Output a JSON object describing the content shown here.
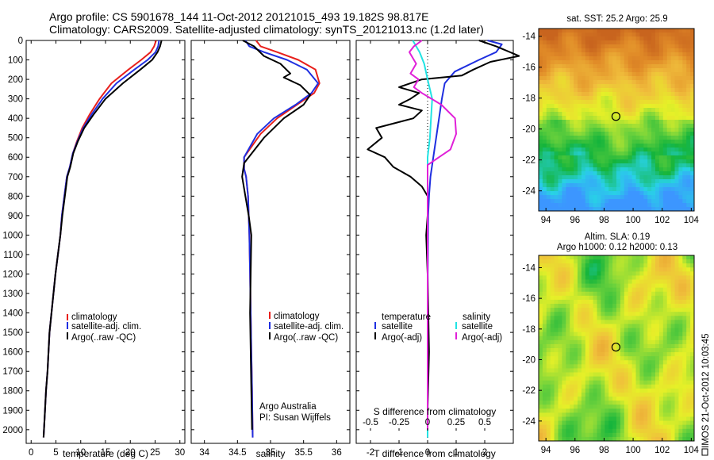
{
  "title": {
    "line1": "Argo profile: CS 5901678_144 11-Oct-2012 20121015_493 19.182S 98.817E",
    "line2": "Climatology: CARS2009. Satellite-adjusted climatology: synTS_20121013.nc (1.2d later)"
  },
  "colors": {
    "climatology": "#e8201c",
    "satellite": "#1f2fe0",
    "argo": "#000000",
    "salinity_satellite": "#22e3e3",
    "salinity_argo": "#e020d8"
  },
  "chart_data": [
    {
      "id": "temperature",
      "type": "line",
      "xlabel": "temperature (deg C)",
      "ylabel": "",
      "xlim": [
        -1,
        31
      ],
      "ylim": [
        2070,
        0
      ],
      "xticks": [
        0,
        5,
        10,
        15,
        20,
        25,
        30
      ],
      "yticks": [
        0,
        100,
        200,
        300,
        400,
        500,
        600,
        700,
        800,
        900,
        1000,
        1100,
        1200,
        1300,
        1400,
        1500,
        1600,
        1700,
        1800,
        1900,
        2000
      ],
      "legend": [
        "climatology",
        "satellite-adj. clim.",
        "Argo(..raw -QC)"
      ],
      "series": [
        {
          "name": "climatology",
          "x": [
            25.2,
            24.8,
            24.1,
            22.2,
            19.6,
            16.2,
            13.8,
            11.8,
            10.3,
            9.2,
            8.4,
            7.8,
            7.2,
            6.7,
            6.2,
            5.9,
            5.4,
            4.9,
            4.5,
            4.1,
            3.7,
            3.3,
            3.0,
            2.7,
            2.5
          ],
          "y": [
            0,
            30,
            60,
            100,
            150,
            220,
            300,
            380,
            450,
            520,
            580,
            650,
            700,
            800,
            900,
            1000,
            1100,
            1200,
            1300,
            1400,
            1500,
            1700,
            1800,
            1950,
            2040
          ]
        },
        {
          "name": "satellite-adj. clim.",
          "x": [
            25.8,
            25.6,
            25.1,
            23.5,
            20.8,
            17.2,
            14.4,
            12.2,
            10.5,
            9.3,
            8.4,
            7.8,
            7.2,
            6.7,
            6.2,
            5.9,
            5.4,
            4.9,
            4.5,
            4.1,
            3.7,
            3.3,
            3.0,
            2.7,
            2.5
          ],
          "y": [
            0,
            30,
            60,
            100,
            150,
            220,
            300,
            380,
            450,
            520,
            580,
            650,
            700,
            800,
            900,
            1000,
            1100,
            1200,
            1300,
            1400,
            1500,
            1700,
            1800,
            1950,
            2040
          ]
        },
        {
          "name": "Argo(..raw -QC)",
          "x": [
            26.3,
            26.0,
            25.5,
            24.4,
            22.0,
            18.5,
            15.0,
            12.6,
            10.7,
            9.4,
            8.5,
            7.9,
            7.3,
            6.8,
            6.3,
            5.9,
            5.4,
            4.9,
            4.5,
            4.1,
            3.7,
            3.3,
            3.0,
            2.7,
            2.5
          ],
          "y": [
            0,
            30,
            60,
            100,
            150,
            220,
            300,
            380,
            450,
            520,
            580,
            650,
            700,
            800,
            900,
            1000,
            1100,
            1200,
            1300,
            1400,
            1500,
            1700,
            1800,
            1950,
            2040
          ]
        }
      ]
    },
    {
      "id": "salinity",
      "type": "line",
      "xlabel": "salinity",
      "xlim": [
        33.8,
        36.2
      ],
      "ylim": [
        2070,
        0
      ],
      "xticks": [
        34,
        34.5,
        35,
        35.5,
        36
      ],
      "yticks": [
        0,
        100,
        200,
        300,
        400,
        500,
        600,
        700,
        800,
        900,
        1000,
        1100,
        1200,
        1300,
        1400,
        1500,
        1600,
        1700,
        1800,
        1900,
        2000
      ],
      "legend": [
        "climatology",
        "satellite-adj. clim.",
        "Argo(..raw -QC)"
      ],
      "annotations": [
        "Argo Australia",
        "PI: Susan Wijffels"
      ],
      "series": [
        {
          "name": "climatology",
          "x": [
            34.78,
            34.85,
            35.1,
            35.42,
            35.68,
            35.74,
            35.66,
            35.4,
            35.1,
            34.85,
            34.6,
            34.6,
            34.63,
            34.66,
            34.67,
            34.68,
            34.69,
            34.7,
            34.71,
            34.72,
            34.73
          ],
          "y": [
            0,
            30,
            60,
            100,
            150,
            220,
            270,
            330,
            400,
            480,
            600,
            660,
            700,
            800,
            900,
            1000,
            1200,
            1400,
            1600,
            1800,
            2040
          ]
        },
        {
          "name": "satellite-adj. clim.",
          "x": [
            34.62,
            34.68,
            34.9,
            35.25,
            35.55,
            35.72,
            35.62,
            35.38,
            35.05,
            34.8,
            34.6,
            34.6,
            34.63,
            34.66,
            34.67,
            34.68,
            34.69,
            34.7,
            34.71,
            34.72,
            34.73
          ],
          "y": [
            0,
            30,
            60,
            100,
            150,
            220,
            270,
            330,
            400,
            480,
            600,
            660,
            700,
            800,
            900,
            1000,
            1200,
            1400,
            1600,
            1800,
            2040
          ]
        },
        {
          "name": "Argo(..raw -QC)",
          "x": [
            34.58,
            34.75,
            34.9,
            35.15,
            35.3,
            35.2,
            35.45,
            35.6,
            35.5,
            35.2,
            34.9,
            34.6,
            34.57,
            34.62,
            34.67,
            34.71,
            34.7,
            34.69,
            34.7,
            34.71,
            34.72
          ],
          "y": [
            0,
            30,
            80,
            120,
            170,
            190,
            230,
            280,
            330,
            400,
            500,
            630,
            700,
            800,
            900,
            1000,
            1200,
            1400,
            1600,
            1800,
            2000
          ]
        }
      ]
    },
    {
      "id": "difference",
      "type": "line",
      "xlabel": "T difference from climatology",
      "xlabel_top": "S difference from climatology",
      "xlim": [
        -2.5,
        3.0
      ],
      "ylim": [
        2070,
        0
      ],
      "xticks": [
        -2,
        -1,
        0,
        1,
        2
      ],
      "s_tick_labels": [
        "-0.5",
        "-0.25",
        "0",
        "0.25",
        "0.5"
      ],
      "yticks": [
        0,
        100,
        200,
        300,
        400,
        500,
        600,
        700,
        800,
        900,
        1000,
        1100,
        1200,
        1300,
        1400,
        1500,
        1600,
        1700,
        1800,
        1900,
        2000
      ],
      "legend_titles": [
        "temperature",
        "salinity"
      ],
      "legend": [
        "satellite",
        "Argo(-adj)",
        "satellite",
        "Argo(-adj)"
      ],
      "series": [
        {
          "name": "satellite",
          "quantity": "temperature",
          "x": [
            2.1,
            2.6,
            2.4,
            1.8,
            0.95,
            0.6,
            0.5,
            0.4,
            0.3,
            0.2,
            0.1,
            0.05,
            0.02,
            0.01,
            0.0,
            0.0,
            0.0
          ],
          "y": [
            0,
            20,
            60,
            100,
            160,
            220,
            300,
            400,
            500,
            600,
            700,
            800,
            900,
            1100,
            1300,
            1600,
            2040
          ]
        },
        {
          "name": "Argo(-adj)",
          "quantity": "temperature",
          "x": [
            1.8,
            2.4,
            3.2,
            2.2,
            1.6,
            1.2,
            -0.2,
            -1.0,
            -0.3,
            -0.6,
            -1.0,
            -0.2,
            -0.5,
            -1.8,
            -1.6,
            -2.1,
            -1.5,
            -1.2,
            -0.6,
            -0.2,
            0.0,
            0.0,
            -0.05,
            0.0,
            0.05,
            0.0,
            0.0
          ],
          "y": [
            0,
            30,
            80,
            110,
            150,
            180,
            200,
            240,
            270,
            300,
            330,
            360,
            400,
            450,
            500,
            560,
            600,
            650,
            700,
            750,
            800,
            900,
            1000,
            1200,
            1600,
            1900,
            2000
          ]
        },
        {
          "name": "satellite",
          "quantity": "salinity",
          "x": [
            -0.13,
            -0.07,
            -0.03,
            0.0,
            0.02,
            0.04,
            0.03,
            0.02,
            0.0,
            0.0,
            0.0,
            0.0,
            0.0,
            0.0
          ],
          "y": [
            0,
            60,
            120,
            200,
            250,
            300,
            400,
            500,
            600,
            700,
            800,
            1000,
            1500,
            2040
          ]
        },
        {
          "name": "Argo(-adj)",
          "quantity": "salinity",
          "x": [
            -0.05,
            -0.12,
            -0.16,
            -0.1,
            -0.15,
            -0.08,
            -0.12,
            -0.05,
            0.12,
            0.24,
            0.25,
            0.2,
            0.1,
            0.0,
            0.0,
            0.0,
            0.0
          ],
          "y": [
            0,
            30,
            60,
            120,
            170,
            200,
            240,
            270,
            330,
            400,
            480,
            560,
            600,
            640,
            700,
            900,
            2000
          ]
        }
      ]
    },
    {
      "id": "sst_map",
      "type": "heatmap",
      "title": "sat. SST: 25.2  Argo: 25.9",
      "xlim": [
        93.5,
        104.2
      ],
      "ylim": [
        -25.3,
        -13.5
      ],
      "xticks": [
        94,
        96,
        98,
        100,
        102,
        104
      ],
      "yticks": [
        -14,
        -16,
        -18,
        -20,
        -22,
        -24
      ],
      "marker": {
        "lon": 98.817,
        "lat": -19.182
      }
    },
    {
      "id": "sla_map",
      "type": "heatmap",
      "title": "Altim. SLA: 0.19",
      "subtitle": "Argo h1000: 0.12  h2000: 0.13",
      "xlim": [
        93.5,
        104.2
      ],
      "ylim": [
        -25.3,
        -13.2
      ],
      "xticks": [
        94,
        96,
        98,
        100,
        102,
        104
      ],
      "yticks": [
        -14,
        -16,
        -18,
        -20,
        -22,
        -24
      ],
      "marker": {
        "lon": 98.817,
        "lat": -19.182
      }
    }
  ],
  "footer": {
    "credit": "IMOS 21-Oct-2012 10:03:45"
  }
}
